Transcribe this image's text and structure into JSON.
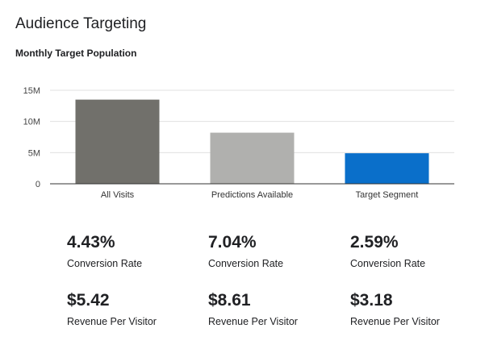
{
  "header": {
    "title": "Audience Targeting"
  },
  "chart_data": {
    "type": "bar",
    "title": "Monthly Target Population",
    "xlabel": "",
    "ylabel": "",
    "categories": [
      "All Visits",
      "Predictions Available",
      "Target Segment"
    ],
    "values": [
      13500000,
      8200000,
      4900000
    ],
    "colors": [
      "#71706b",
      "#b0b0ae",
      "#0a6fca"
    ],
    "yticks": [
      0,
      5000000,
      10000000,
      15000000
    ],
    "ytick_labels": [
      "0",
      "5M",
      "10M",
      "15M"
    ],
    "ylim": [
      0,
      15000000
    ],
    "grid": true,
    "legend": "none"
  },
  "metrics": [
    {
      "conversion_rate": "4.43%",
      "conversion_label": "Conversion Rate",
      "revenue": "$5.42",
      "revenue_label": "Revenue Per Visitor"
    },
    {
      "conversion_rate": "7.04%",
      "conversion_label": "Conversion Rate",
      "revenue": "$8.61",
      "revenue_label": "Revenue Per Visitor"
    },
    {
      "conversion_rate": "2.59%",
      "conversion_label": "Conversion Rate",
      "revenue": "$3.18",
      "revenue_label": "Revenue Per Visitor"
    }
  ]
}
